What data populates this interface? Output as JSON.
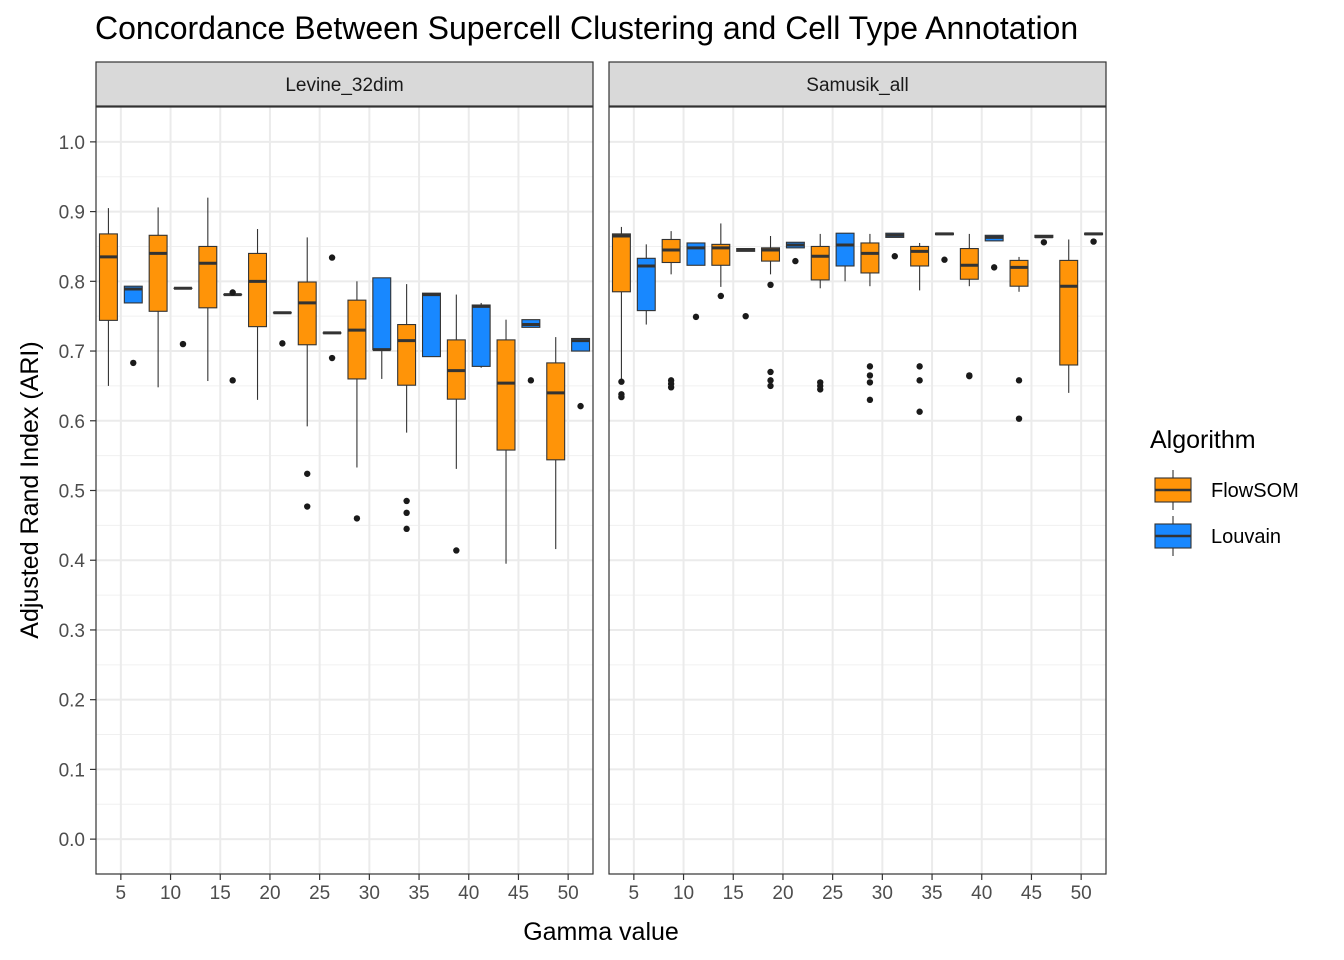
{
  "chart_data": {
    "type": "boxplot",
    "title": "Concordance Between Supercell Clustering and Cell Type Annotation",
    "xlabel": "Gamma value",
    "ylabel": "Adjusted Rand Index (ARI)",
    "ylim": [
      -0.05,
      1.05
    ],
    "y_ticks": [
      "0.0",
      "0.1",
      "0.2",
      "0.3",
      "0.4",
      "0.5",
      "0.6",
      "0.7",
      "0.8",
      "0.9",
      "1.0"
    ],
    "categories": [
      "5",
      "10",
      "15",
      "20",
      "25",
      "30",
      "35",
      "40",
      "45",
      "50"
    ],
    "grid": true,
    "legend": {
      "title": "Algorithm",
      "position": "right",
      "entries": [
        {
          "name": "FlowSOM",
          "color": "#FF9408"
        },
        {
          "name": "Louvain",
          "color": "#1888FF"
        }
      ]
    },
    "panels": [
      {
        "name": "Levine_32dim",
        "series": [
          {
            "name": "FlowSOM",
            "boxes": [
              {
                "whisker_low": 0.65,
                "q1": 0.744,
                "median": 0.835,
                "q3": 0.868,
                "whisker_high": 0.905,
                "outliers": []
              },
              {
                "whisker_low": 0.648,
                "q1": 0.757,
                "median": 0.84,
                "q3": 0.866,
                "whisker_high": 0.906,
                "outliers": []
              },
              {
                "whisker_low": 0.657,
                "q1": 0.762,
                "median": 0.826,
                "q3": 0.85,
                "whisker_high": 0.92,
                "outliers": []
              },
              {
                "whisker_low": 0.63,
                "q1": 0.735,
                "median": 0.8,
                "q3": 0.84,
                "whisker_high": 0.875,
                "outliers": []
              },
              {
                "whisker_low": 0.592,
                "q1": 0.709,
                "median": 0.769,
                "q3": 0.799,
                "whisker_high": 0.863,
                "outliers": [
                  0.477,
                  0.524
                ]
              },
              {
                "whisker_low": 0.533,
                "q1": 0.66,
                "median": 0.73,
                "q3": 0.773,
                "whisker_high": 0.8,
                "outliers": [
                  0.46
                ]
              },
              {
                "whisker_low": 0.583,
                "q1": 0.651,
                "median": 0.715,
                "q3": 0.738,
                "whisker_high": 0.796,
                "outliers": [
                  0.445,
                  0.468,
                  0.485
                ]
              },
              {
                "whisker_low": 0.531,
                "q1": 0.631,
                "median": 0.672,
                "q3": 0.716,
                "whisker_high": 0.781,
                "outliers": [
                  0.414
                ]
              },
              {
                "whisker_low": 0.395,
                "q1": 0.558,
                "median": 0.654,
                "q3": 0.716,
                "whisker_high": 0.745,
                "outliers": []
              },
              {
                "whisker_low": 0.416,
                "q1": 0.544,
                "median": 0.64,
                "q3": 0.683,
                "whisker_high": 0.72,
                "outliers": []
              }
            ]
          },
          {
            "name": "Louvain",
            "boxes": [
              {
                "whisker_low": 0.769,
                "q1": 0.769,
                "median": 0.789,
                "q3": 0.793,
                "whisker_high": 0.793,
                "outliers": [
                  0.683
                ]
              },
              {
                "whisker_low": 0.79,
                "q1": 0.79,
                "median": 0.79,
                "q3": 0.79,
                "whisker_high": 0.79,
                "outliers": [
                  0.71
                ]
              },
              {
                "whisker_low": 0.781,
                "q1": 0.781,
                "median": 0.781,
                "q3": 0.781,
                "whisker_high": 0.781,
                "outliers": [
                  0.658,
                  0.784
                ]
              },
              {
                "whisker_low": 0.755,
                "q1": 0.755,
                "median": 0.755,
                "q3": 0.755,
                "whisker_high": 0.755,
                "outliers": [
                  0.711
                ]
              },
              {
                "whisker_low": 0.726,
                "q1": 0.726,
                "median": 0.726,
                "q3": 0.726,
                "whisker_high": 0.726,
                "outliers": [
                  0.69,
                  0.834
                ]
              },
              {
                "whisker_low": 0.66,
                "q1": 0.702,
                "median": 0.702,
                "q3": 0.805,
                "whisker_high": 0.805,
                "outliers": []
              },
              {
                "whisker_low": 0.692,
                "q1": 0.692,
                "median": 0.781,
                "q3": 0.783,
                "whisker_high": 0.783,
                "outliers": []
              },
              {
                "whisker_low": 0.676,
                "q1": 0.678,
                "median": 0.764,
                "q3": 0.766,
                "whisker_high": 0.769,
                "outliers": []
              },
              {
                "whisker_low": 0.734,
                "q1": 0.734,
                "median": 0.738,
                "q3": 0.745,
                "whisker_high": 0.745,
                "outliers": [
                  0.658
                ]
              },
              {
                "whisker_low": 0.7,
                "q1": 0.7,
                "median": 0.715,
                "q3": 0.718,
                "whisker_high": 0.718,
                "outliers": [
                  0.621
                ]
              }
            ]
          }
        ]
      },
      {
        "name": "Samusik_all",
        "series": [
          {
            "name": "FlowSOM",
            "boxes": [
              {
                "whisker_low": 0.66,
                "q1": 0.785,
                "median": 0.865,
                "q3": 0.868,
                "whisker_high": 0.878,
                "outliers": [
                  0.634,
                  0.638,
                  0.656
                ]
              },
              {
                "whisker_low": 0.81,
                "q1": 0.827,
                "median": 0.845,
                "q3": 0.86,
                "whisker_high": 0.872,
                "outliers": [
                  0.648,
                  0.653,
                  0.658
                ]
              },
              {
                "whisker_low": 0.792,
                "q1": 0.823,
                "median": 0.848,
                "q3": 0.853,
                "whisker_high": 0.883,
                "outliers": [
                  0.779
                ]
              },
              {
                "whisker_low": 0.81,
                "q1": 0.829,
                "median": 0.845,
                "q3": 0.848,
                "whisker_high": 0.865,
                "outliers": [
                  0.65,
                  0.658,
                  0.67,
                  0.795
                ]
              },
              {
                "whisker_low": 0.79,
                "q1": 0.802,
                "median": 0.836,
                "q3": 0.85,
                "whisker_high": 0.868,
                "outliers": [
                  0.645,
                  0.65,
                  0.655
                ]
              },
              {
                "whisker_low": 0.793,
                "q1": 0.812,
                "median": 0.84,
                "q3": 0.855,
                "whisker_high": 0.868,
                "outliers": [
                  0.63,
                  0.655,
                  0.665,
                  0.678
                ]
              },
              {
                "whisker_low": 0.787,
                "q1": 0.822,
                "median": 0.843,
                "q3": 0.85,
                "whisker_high": 0.855,
                "outliers": [
                  0.613,
                  0.658,
                  0.678
                ]
              },
              {
                "whisker_low": 0.793,
                "q1": 0.803,
                "median": 0.823,
                "q3": 0.847,
                "whisker_high": 0.868,
                "outliers": [
                  0.664,
                  0.665
                ]
              },
              {
                "whisker_low": 0.785,
                "q1": 0.793,
                "median": 0.82,
                "q3": 0.83,
                "whisker_high": 0.835,
                "outliers": [
                  0.603,
                  0.658
                ]
              },
              {
                "whisker_low": 0.64,
                "q1": 0.68,
                "median": 0.793,
                "q3": 0.83,
                "whisker_high": 0.86,
                "outliers": []
              }
            ]
          },
          {
            "name": "Louvain",
            "boxes": [
              {
                "whisker_low": 0.738,
                "q1": 0.758,
                "median": 0.822,
                "q3": 0.833,
                "whisker_high": 0.853,
                "outliers": []
              },
              {
                "whisker_low": 0.823,
                "q1": 0.823,
                "median": 0.848,
                "q3": 0.855,
                "whisker_high": 0.855,
                "outliers": [
                  0.749
                ]
              },
              {
                "whisker_low": 0.843,
                "q1": 0.843,
                "median": 0.845,
                "q3": 0.847,
                "whisker_high": 0.847,
                "outliers": [
                  0.75
                ]
              },
              {
                "whisker_low": 0.848,
                "q1": 0.848,
                "median": 0.852,
                "q3": 0.856,
                "whisker_high": 0.856,
                "outliers": [
                  0.829
                ]
              },
              {
                "whisker_low": 0.8,
                "q1": 0.822,
                "median": 0.852,
                "q3": 0.869,
                "whisker_high": 0.869,
                "outliers": []
              },
              {
                "whisker_low": 0.863,
                "q1": 0.863,
                "median": 0.866,
                "q3": 0.869,
                "whisker_high": 0.869,
                "outliers": [
                  0.836
                ]
              },
              {
                "whisker_low": 0.867,
                "q1": 0.867,
                "median": 0.868,
                "q3": 0.869,
                "whisker_high": 0.869,
                "outliers": [
                  0.831
                ]
              },
              {
                "whisker_low": 0.858,
                "q1": 0.858,
                "median": 0.863,
                "q3": 0.866,
                "whisker_high": 0.866,
                "outliers": [
                  0.82
                ]
              },
              {
                "whisker_low": 0.863,
                "q1": 0.863,
                "median": 0.864,
                "q3": 0.866,
                "whisker_high": 0.866,
                "outliers": [
                  0.856
                ]
              },
              {
                "whisker_low": 0.867,
                "q1": 0.867,
                "median": 0.868,
                "q3": 0.869,
                "whisker_high": 0.869,
                "outliers": [
                  0.857
                ]
              }
            ]
          }
        ]
      }
    ]
  }
}
